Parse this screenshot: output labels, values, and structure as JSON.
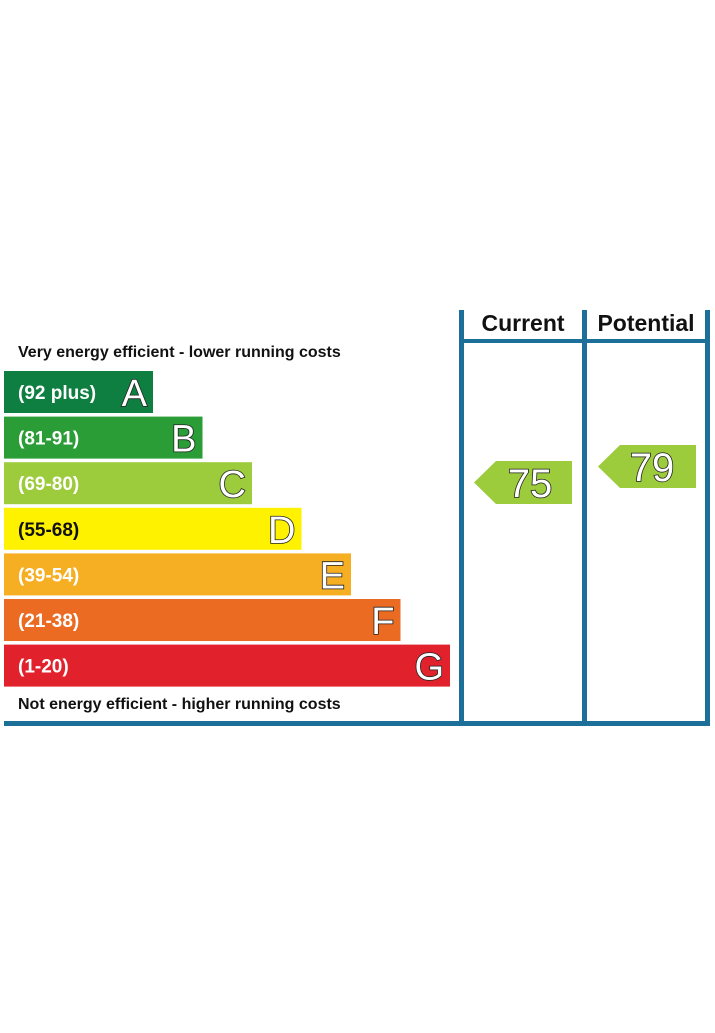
{
  "chart_data": {
    "type": "bar",
    "headers": {
      "current": "Current",
      "potential": "Potential"
    },
    "top_caption": "Very energy efficient - lower running costs",
    "bottom_caption": "Not energy efficient - higher running costs",
    "bands": [
      {
        "range": "(92 plus)",
        "letter": "A",
        "color": "#0e7f41"
      },
      {
        "range": "(81-91)",
        "letter": "B",
        "color": "#2a9d36"
      },
      {
        "range": "(69-80)",
        "letter": "C",
        "color": "#9ccb3b"
      },
      {
        "range": "(55-68)",
        "letter": "D",
        "color": "#fff200"
      },
      {
        "range": "(39-54)",
        "letter": "E",
        "color": "#f6ae23"
      },
      {
        "range": "(21-38)",
        "letter": "F",
        "color": "#ec6b23"
      },
      {
        "range": "(1-20)",
        "letter": "G",
        "color": "#e1222c"
      }
    ],
    "current": {
      "value": 75,
      "label": "75",
      "color": "#9ccb3b"
    },
    "potential": {
      "value": 79,
      "label": "79",
      "color": "#9ccb3b"
    },
    "frame_color": "#1b6f98"
  }
}
